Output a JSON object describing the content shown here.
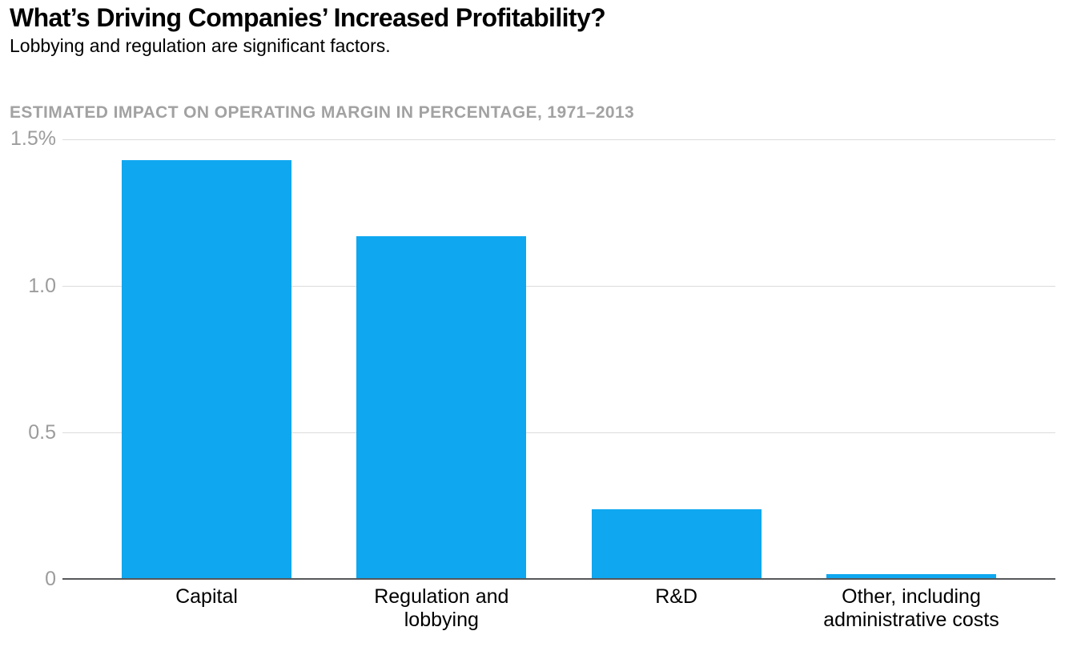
{
  "header": {
    "title": "What’s Driving Companies’ Increased Profitability?",
    "subtitle": "Lobbying and regulation are significant factors."
  },
  "chart_data": {
    "type": "bar",
    "title": "What’s Driving Companies’ Increased Profitability?",
    "subtitle": "Lobbying and regulation are significant factors.",
    "axis_title": "ESTIMATED IMPACT ON OPERATING MARGIN IN PERCENTAGE, 1971–2013",
    "categories": [
      "Capital",
      "Regulation and\nlobbying",
      "R&D",
      "Other, including\nadministrative costs"
    ],
    "values": [
      1.43,
      1.17,
      0.24,
      0.02
    ],
    "unit": "percentage points of operating margin",
    "ylim": [
      0,
      1.5
    ],
    "yticks": [
      {
        "label": "1.5%",
        "value": 1.5
      },
      {
        "label": "1.0",
        "value": 1.0
      },
      {
        "label": "0.5",
        "value": 0.5
      },
      {
        "label": "0",
        "value": 0.0
      }
    ],
    "grid": true,
    "legend": false,
    "bar_color": "#0fa7f0",
    "gridline_color": "#dcdcdc",
    "baseline_color": "#57585a",
    "tick_label_color": "#9c9c9c",
    "axis_title_color": "#a2a2a2"
  }
}
